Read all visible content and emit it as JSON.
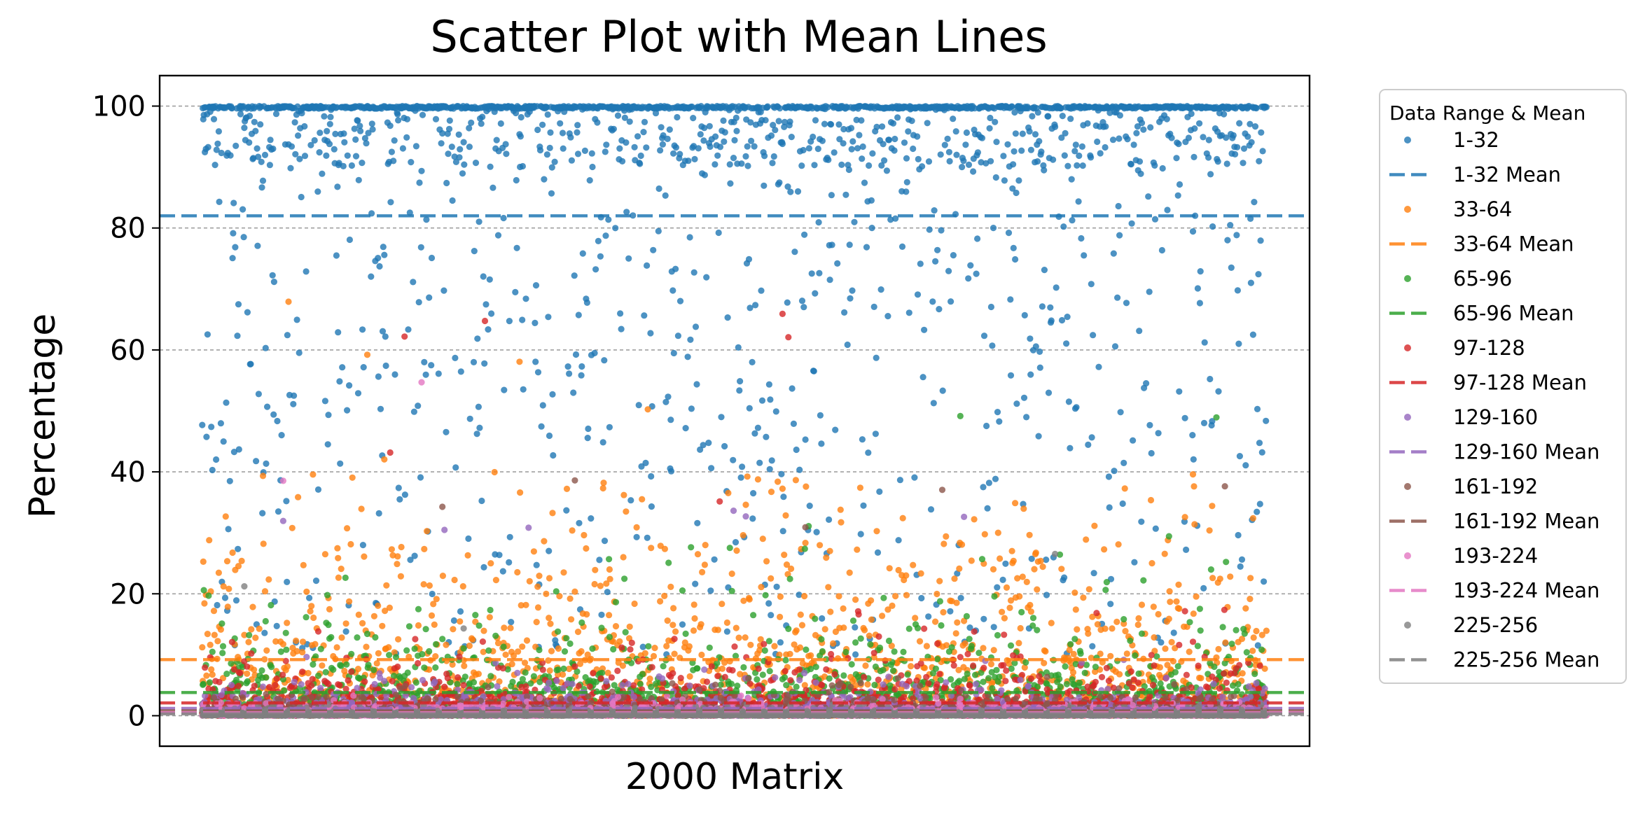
{
  "chart_data": {
    "type": "scatter",
    "title": "Scatter Plot with Mean Lines",
    "xlabel": "2000 Matrix",
    "ylabel": "Percentage",
    "ylim": [
      -5,
      105
    ],
    "xlim": [
      -80,
      2080
    ],
    "yticks": [
      0,
      20,
      40,
      60,
      80,
      100
    ],
    "x_tick_labels_shown": false,
    "grid": "horizontal dashed",
    "legend_position": "outside right",
    "legend_title": "Data Range & Mean",
    "n_points_per_series": 2000,
    "series": [
      {
        "name": "1-32",
        "mean_label": "1-32 Mean",
        "color": "#1f77b4",
        "mean": 82.0,
        "distribution": {
          "saturated_at_100": 0.43,
          "high_90_100": 0.25,
          "mid_40_90": 0.22,
          "low_10_40": 0.1
        }
      },
      {
        "name": "33-64",
        "mean_label": "33-64 Mean",
        "color": "#ff7f0e",
        "mean": 9.2,
        "distribution": {
          "typical_range": [
            0,
            40
          ],
          "outliers_up_to": 76
        }
      },
      {
        "name": "65-96",
        "mean_label": "65-96 Mean",
        "color": "#2ca02c",
        "mean": 3.8,
        "distribution": {
          "typical_range": [
            0,
            35
          ],
          "outliers_up_to": 62
        }
      },
      {
        "name": "97-128",
        "mean_label": "97-128 Mean",
        "color": "#d62728",
        "mean": 2.1,
        "distribution": {
          "typical_range": [
            0,
            35
          ],
          "outliers_up_to": 66
        }
      },
      {
        "name": "129-160",
        "mean_label": "129-160 Mean",
        "color": "#9467bd",
        "mean": 1.2,
        "distribution": {
          "typical_range": [
            0,
            30
          ],
          "outliers_up_to": 34
        }
      },
      {
        "name": "161-192",
        "mean_label": "161-192 Mean",
        "color": "#8c564b",
        "mean": 0.8,
        "distribution": {
          "typical_range": [
            0,
            30
          ],
          "outliers_up_to": 40
        }
      },
      {
        "name": "193-224",
        "mean_label": "193-224 Mean",
        "color": "#e377c2",
        "mean": 0.5,
        "distribution": {
          "typical_range": [
            0,
            25
          ],
          "outliers_up_to": 55
        }
      },
      {
        "name": "225-256",
        "mean_label": "225-256 Mean",
        "color": "#7f7f7f",
        "mean": 0.3,
        "distribution": {
          "typical_range": [
            0,
            5
          ],
          "outliers_up_to": 29
        }
      }
    ]
  }
}
